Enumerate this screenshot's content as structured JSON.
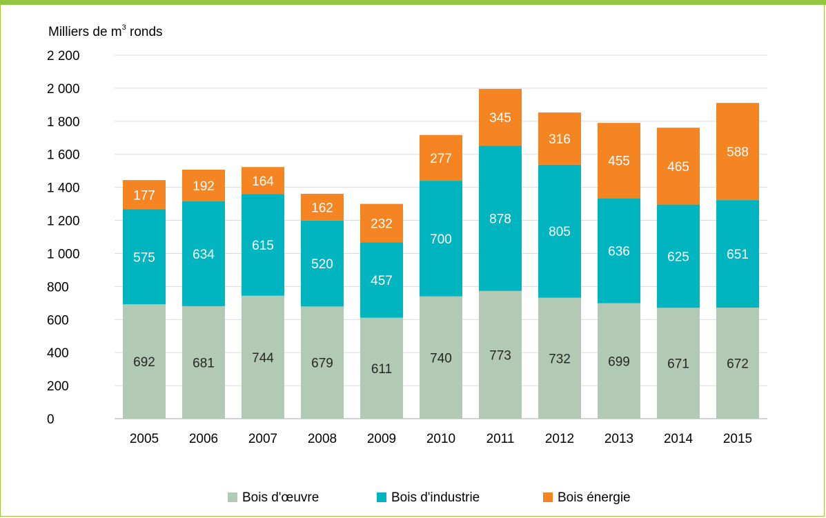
{
  "colors": {
    "frame_bar": "#8dc63f",
    "frame_border": "#9dc545",
    "gridline": "#d9d9d9",
    "axis": "#a6a6a6"
  },
  "chart_data": {
    "type": "bar",
    "stacked": true,
    "y_unit_prefix": "Milliers de m",
    "y_unit_superscript": "3",
    "y_unit_suffix": " ronds",
    "categories": [
      "2005",
      "2006",
      "2007",
      "2008",
      "2009",
      "2010",
      "2011",
      "2012",
      "2013",
      "2014",
      "2015"
    ],
    "series": [
      {
        "name": "Bois d'œuvre",
        "color": "#b2c9b3",
        "label_color": "#262626",
        "values": [
          692,
          681,
          744,
          679,
          611,
          740,
          773,
          732,
          699,
          671,
          672
        ]
      },
      {
        "name": "Bois d'industrie",
        "color": "#00b5bf",
        "label_color": "#ffffff",
        "values": [
          575,
          634,
          615,
          520,
          457,
          700,
          878,
          805,
          636,
          625,
          651
        ]
      },
      {
        "name": "Bois énergie",
        "color": "#f58523",
        "label_color": "#ffffff",
        "values": [
          177,
          192,
          164,
          162,
          232,
          277,
          345,
          316,
          455,
          465,
          588
        ]
      }
    ],
    "ylim": [
      0,
      2200
    ],
    "yticks": [
      0,
      200,
      400,
      600,
      800,
      1000,
      1200,
      1400,
      1600,
      1800,
      2000,
      2200
    ],
    "ytick_labels": [
      "0",
      "200",
      "400",
      "600",
      "800",
      "1 000",
      "1 200",
      "1 400",
      "1 600",
      "1 800",
      "2 000",
      "2 200"
    ],
    "grid": true,
    "legend_position": "bottom"
  }
}
